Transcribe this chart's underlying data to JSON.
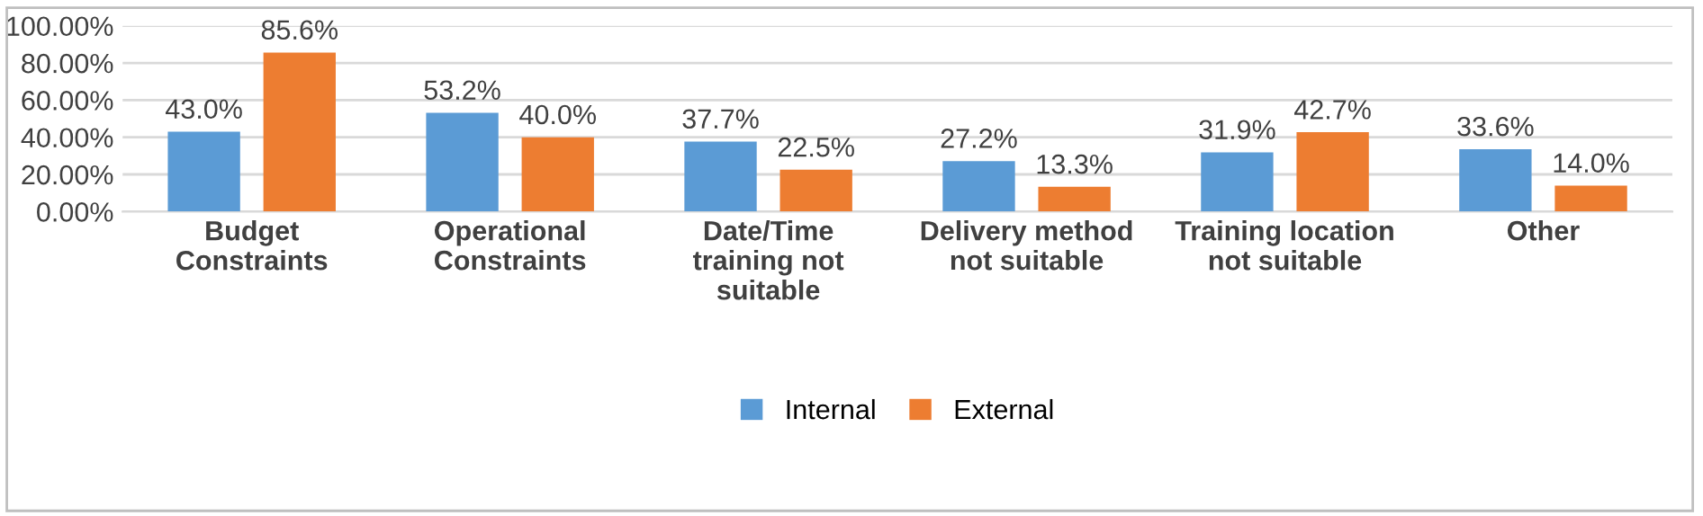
{
  "chart_data": {
    "type": "bar",
    "categories": [
      "Budget\nConstraints",
      "Operational\nConstraints",
      "Date/Time\ntraining not\nsuitable",
      "Delivery method\nnot suitable",
      "Training location\nnot suitable",
      "Other"
    ],
    "series": [
      {
        "name": "Internal",
        "color": "#5b9bd5",
        "values": [
          43.0,
          53.2,
          37.7,
          27.2,
          31.9,
          33.6
        ],
        "value_labels": [
          "43.0%",
          "53.2%",
          "37.7%",
          "27.2%",
          "31.9%",
          "33.6%"
        ]
      },
      {
        "name": "External",
        "color": "#ed7d31",
        "values": [
          85.6,
          40.0,
          22.5,
          13.3,
          42.7,
          14.0
        ],
        "value_labels": [
          "85.6%",
          "40.0%",
          "22.5%",
          "13.3%",
          "42.7%",
          "14.0%"
        ]
      }
    ],
    "ylim": [
      0,
      100
    ],
    "yticks": [
      {
        "value": 0,
        "label": "0.00%"
      },
      {
        "value": 20,
        "label": "20.00%"
      },
      {
        "value": 40,
        "label": "40.00%"
      },
      {
        "value": 60,
        "label": "60.00%"
      },
      {
        "value": 80,
        "label": "80.00%"
      },
      {
        "value": 100,
        "label": "100.00%"
      }
    ],
    "grid": "y",
    "legend": "bottom"
  }
}
